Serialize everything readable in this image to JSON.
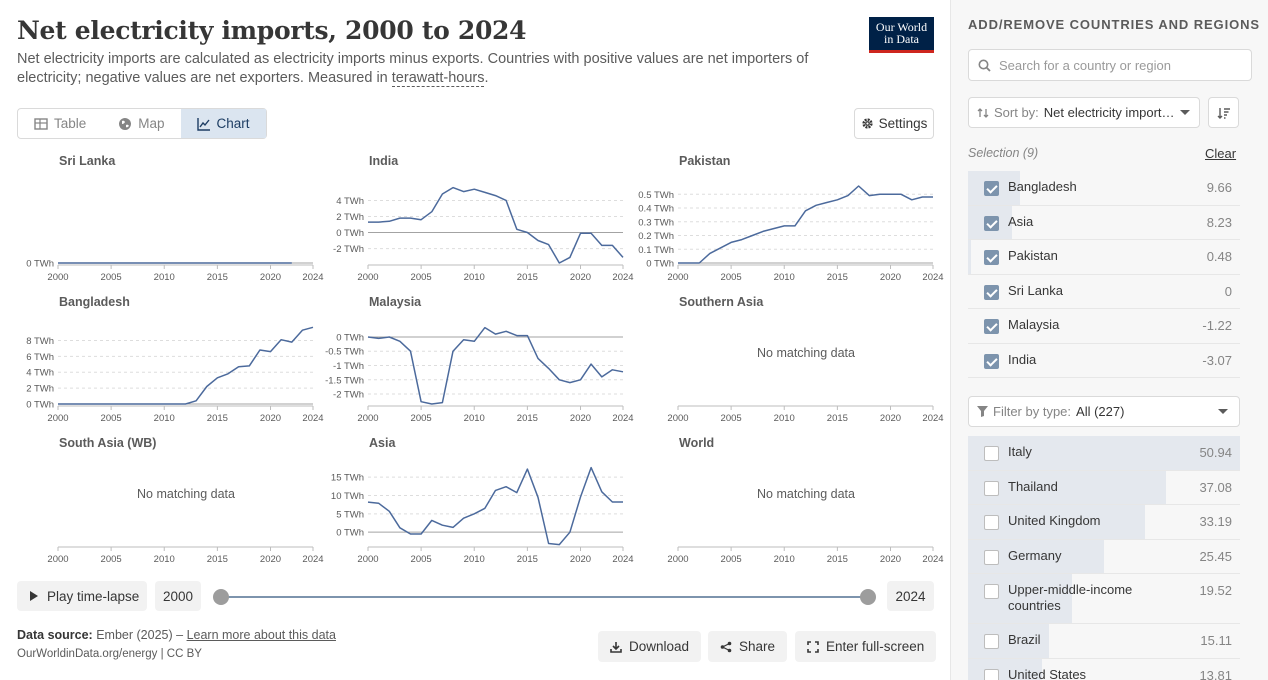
{
  "header": {
    "title": "Net electricity imports, 2000 to 2024",
    "subtitle_pre": "Net electricity imports are calculated as electricity imports minus exports. Countries with positive values are net importers of electricity; negative values are net exporters. Measured in ",
    "subtitle_link": "terawatt-hours",
    "subtitle_post": "."
  },
  "logo": {
    "line1": "Our World",
    "line2": "in Data"
  },
  "tabs": [
    {
      "label": "Table",
      "icon": "table-icon"
    },
    {
      "label": "Map",
      "icon": "globe-icon"
    },
    {
      "label": "Chart",
      "icon": "line-chart-icon",
      "active": true
    }
  ],
  "settings_label": "Settings",
  "timeline": {
    "play_label": "Play time-lapse",
    "start_year": "2000",
    "end_year": "2024",
    "start_fraction": 0,
    "end_fraction": 1
  },
  "source": {
    "label": "Data source:",
    "text": "Ember (2025) –",
    "link": "Learn more about this data",
    "line2": "OurWorldinData.org/energy | CC BY"
  },
  "footer_buttons": {
    "download": "Download",
    "share": "Share",
    "fullscreen": "Enter full-screen"
  },
  "colors": {
    "line": "#4c6a9c",
    "accent": "#dbe5f0",
    "text": "#363636",
    "no_data_text": "#5b5b5b"
  },
  "chart_data": [
    {
      "type": "line",
      "title": "Sri Lanka",
      "xticks": [
        "2000",
        "2005",
        "2010",
        "2015",
        "2020",
        "2024"
      ],
      "xlim": [
        2000,
        2024
      ],
      "yticks": [
        "0 TWh"
      ],
      "ytick_values": [
        0
      ],
      "ylim": [
        0,
        1
      ],
      "x": [
        2000,
        2001,
        2002,
        2003,
        2004,
        2005,
        2006,
        2007,
        2008,
        2009,
        2010,
        2011,
        2012,
        2013,
        2014,
        2015,
        2016,
        2017,
        2018,
        2019,
        2020,
        2021,
        2022
      ],
      "y": [
        0,
        0,
        0,
        0,
        0,
        0,
        0,
        0,
        0,
        0,
        0,
        0,
        0,
        0,
        0,
        0,
        0,
        0,
        0,
        0,
        0,
        0,
        0
      ]
    },
    {
      "type": "line",
      "title": "India",
      "xticks": [
        "2000",
        "2005",
        "2010",
        "2015",
        "2020",
        "2024"
      ],
      "xlim": [
        2000,
        2024
      ],
      "yticks": [
        "4 TWh",
        "2 TWh",
        "0 TWh",
        "-2 TWh"
      ],
      "ytick_values": [
        4,
        2,
        0,
        -2
      ],
      "ylim": [
        -3.8,
        5.8
      ],
      "x": [
        2000,
        2001,
        2002,
        2003,
        2004,
        2005,
        2006,
        2007,
        2008,
        2009,
        2010,
        2011,
        2012,
        2013,
        2014,
        2015,
        2016,
        2017,
        2018,
        2019,
        2020,
        2021,
        2022,
        2023,
        2024
      ],
      "y": [
        1.3,
        1.3,
        1.4,
        1.8,
        1.8,
        1.6,
        2.6,
        4.8,
        5.6,
        5.1,
        5.4,
        5.0,
        4.6,
        4.0,
        0.4,
        0.0,
        -1.0,
        -1.5,
        -3.8,
        -3.1,
        -0.1,
        -0.1,
        -1.6,
        -1.6,
        -3.1
      ]
    },
    {
      "type": "line",
      "title": "Pakistan",
      "xticks": [
        "2000",
        "2005",
        "2010",
        "2015",
        "2020",
        "2024"
      ],
      "xlim": [
        2000,
        2024
      ],
      "yticks": [
        "0.5 TWh",
        "0.4 TWh",
        "0.3 TWh",
        "0.2 TWh",
        "0.1 TWh",
        "0 TWh"
      ],
      "ytick_values": [
        0.5,
        0.4,
        0.3,
        0.2,
        0.1,
        0
      ],
      "ylim": [
        0,
        0.56
      ],
      "x": [
        2000,
        2001,
        2002,
        2003,
        2004,
        2005,
        2006,
        2007,
        2008,
        2009,
        2010,
        2011,
        2012,
        2013,
        2014,
        2015,
        2016,
        2017,
        2018,
        2019,
        2020,
        2021,
        2022,
        2023,
        2024
      ],
      "y": [
        0,
        0,
        0,
        0.07,
        0.11,
        0.15,
        0.17,
        0.2,
        0.23,
        0.25,
        0.27,
        0.27,
        0.38,
        0.42,
        0.44,
        0.46,
        0.49,
        0.56,
        0.49,
        0.5,
        0.5,
        0.5,
        0.46,
        0.48,
        0.48
      ]
    },
    {
      "type": "line",
      "title": "Bangladesh",
      "xticks": [
        "2000",
        "2005",
        "2010",
        "2015",
        "2020",
        "2024"
      ],
      "xlim": [
        2000,
        2024
      ],
      "yticks": [
        "8 TWh",
        "6 TWh",
        "4 TWh",
        "2 TWh",
        "0 TWh"
      ],
      "ytick_values": [
        8,
        6,
        4,
        2,
        0
      ],
      "ylim": [
        0,
        9.7
      ],
      "x": [
        2000,
        2001,
        2002,
        2003,
        2004,
        2005,
        2006,
        2007,
        2008,
        2009,
        2010,
        2011,
        2012,
        2013,
        2014,
        2015,
        2016,
        2017,
        2018,
        2019,
        2020,
        2021,
        2022,
        2023,
        2024
      ],
      "y": [
        0,
        0,
        0,
        0,
        0,
        0,
        0,
        0,
        0,
        0,
        0,
        0,
        0,
        0.4,
        2.2,
        3.3,
        3.8,
        4.7,
        4.8,
        6.8,
        6.6,
        8.1,
        7.8,
        9.3,
        9.66
      ]
    },
    {
      "type": "line",
      "title": "Malaysia",
      "xticks": [
        "2000",
        "2005",
        "2010",
        "2015",
        "2020",
        "2024"
      ],
      "xlim": [
        2000,
        2024
      ],
      "yticks": [
        "0 TWh",
        "-0.5 TWh",
        "-1 TWh",
        "-1.5 TWh",
        "-2 TWh"
      ],
      "ytick_values": [
        0,
        -0.5,
        -1,
        -1.5,
        -2
      ],
      "ylim": [
        -2.35,
        0.35
      ],
      "x": [
        2000,
        2001,
        2002,
        2003,
        2004,
        2005,
        2006,
        2007,
        2008,
        2009,
        2010,
        2011,
        2012,
        2013,
        2014,
        2015,
        2016,
        2017,
        2018,
        2019,
        2020,
        2021,
        2022,
        2023,
        2024
      ],
      "y": [
        0,
        -0.05,
        0,
        -0.15,
        -0.5,
        -2.27,
        -2.35,
        -2.3,
        -0.5,
        -0.1,
        -0.15,
        0.33,
        0.1,
        0.2,
        0.05,
        0.05,
        -0.75,
        -1.1,
        -1.5,
        -1.6,
        -1.5,
        -0.95,
        -1.4,
        -1.15,
        -1.22
      ]
    },
    {
      "type": "line",
      "title": "Southern Asia",
      "no_data": "No matching data",
      "xticks": [
        "2000",
        "2005",
        "2010",
        "2015",
        "2020",
        "2024"
      ],
      "xlim": [
        2000,
        2024
      ]
    },
    {
      "type": "line",
      "title": "South Asia (WB)",
      "no_data": "No matching data",
      "xticks": [
        "2000",
        "2005",
        "2010",
        "2015",
        "2020",
        "2024"
      ],
      "xlim": [
        2000,
        2024
      ]
    },
    {
      "type": "line",
      "title": "Asia",
      "xticks": [
        "2000",
        "2005",
        "2010",
        "2015",
        "2020",
        "2024"
      ],
      "xlim": [
        2000,
        2024
      ],
      "yticks": [
        "15 TWh",
        "10 TWh",
        "5 TWh",
        "0 TWh"
      ],
      "ytick_values": [
        15,
        10,
        5,
        0
      ],
      "ylim": [
        -3.5,
        17.5
      ],
      "x": [
        2000,
        2001,
        2002,
        2003,
        2004,
        2005,
        2006,
        2007,
        2008,
        2009,
        2010,
        2011,
        2012,
        2013,
        2014,
        2015,
        2016,
        2017,
        2018,
        2019,
        2020,
        2021,
        2022,
        2023,
        2024
      ],
      "y": [
        8.2,
        7.9,
        5.7,
        1.2,
        -0.5,
        -0.5,
        3.2,
        1.9,
        1.3,
        3.8,
        5.0,
        6.5,
        11.4,
        12.4,
        10.8,
        17.2,
        9.5,
        -3.1,
        -3.4,
        0.0,
        9.6,
        17.6,
        11.0,
        8.23,
        8.23
      ]
    },
    {
      "type": "line",
      "title": "World",
      "no_data": "No matching data",
      "xticks": [
        "2000",
        "2005",
        "2010",
        "2015",
        "2020",
        "2024"
      ],
      "xlim": [
        2000,
        2024
      ]
    }
  ],
  "sidebar": {
    "heading": "ADD/REMOVE COUNTRIES AND REGIONS",
    "search_placeholder": "Search for a country or region",
    "sort_label": "Sort by:",
    "sort_value": "Net electricity import…",
    "selection_label": "Selection (9)",
    "clear_label": "Clear",
    "max_value": 50.94,
    "selected": [
      {
        "name": "Bangladesh",
        "value": "9.66",
        "num": 9.66
      },
      {
        "name": "Asia",
        "value": "8.23",
        "num": 8.23
      },
      {
        "name": "Pakistan",
        "value": "0.48",
        "num": 0.48
      },
      {
        "name": "Sri Lanka",
        "value": "0",
        "num": 0
      },
      {
        "name": "Malaysia",
        "value": "-1.22",
        "num": 0
      },
      {
        "name": "India",
        "value": "-3.07",
        "num": 0
      }
    ],
    "filter_label": "Filter by type:",
    "filter_value": "All (227)",
    "others": [
      {
        "name": "Italy",
        "value": "50.94",
        "num": 50.94
      },
      {
        "name": "Thailand",
        "value": "37.08",
        "num": 37.08
      },
      {
        "name": "United Kingdom",
        "value": "33.19",
        "num": 33.19
      },
      {
        "name": "Germany",
        "value": "25.45",
        "num": 25.45
      },
      {
        "name": "Upper-middle-income countries",
        "value": "19.52",
        "num": 19.52
      },
      {
        "name": "Brazil",
        "value": "15.11",
        "num": 15.11
      },
      {
        "name": "United States",
        "value": "13.81",
        "num": 13.81
      }
    ]
  }
}
